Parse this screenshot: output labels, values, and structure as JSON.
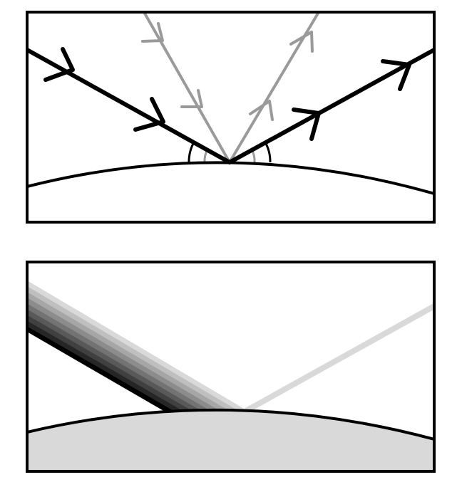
{
  "figure": {
    "panels": [
      {
        "id": "top",
        "content": "ray-reflection-arrows",
        "colors": {
          "frame": "#000000",
          "incident_ray": "#000000",
          "secondary_ray": "#9a9a9a",
          "surface": "#000000",
          "background": "#ffffff"
        }
      },
      {
        "id": "bottom",
        "content": "gradient-beam-reflection",
        "colors": {
          "frame": "#000000",
          "surface_fill": "#d9d9d9",
          "reflected_beam": "#d9d9d9",
          "beam_gradient": [
            "#000000",
            "#262626",
            "#404040",
            "#595959",
            "#737373",
            "#8c8c8c",
            "#a6a6a6",
            "#bfbfbf",
            "#d9d9d9"
          ]
        }
      }
    ]
  }
}
